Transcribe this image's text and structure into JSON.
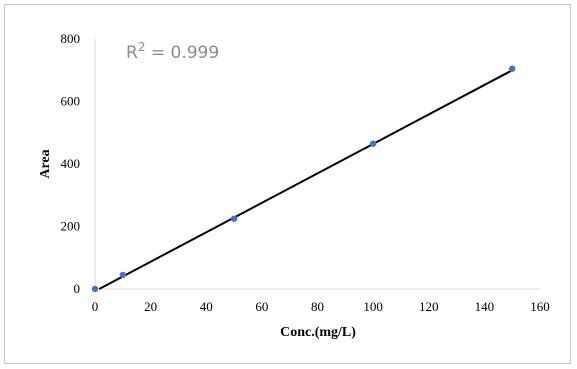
{
  "chart_data": {
    "type": "scatter",
    "xlabel": "Conc.(mg/L)",
    "ylabel": "Area",
    "xlim": [
      0,
      160
    ],
    "ylim": [
      0,
      800
    ],
    "xticks": [
      0,
      20,
      40,
      60,
      80,
      100,
      120,
      140,
      160
    ],
    "yticks": [
      0,
      200,
      400,
      600,
      800
    ],
    "grid": false,
    "annotation": {
      "prefix": "R",
      "superscript": "2",
      "suffix": " = 0.999"
    },
    "marker_color": "#4472c4",
    "line_color": "#000000",
    "series": [
      {
        "points": [
          {
            "x": 0,
            "y": 0
          },
          {
            "x": 10,
            "y": 45
          },
          {
            "x": 50,
            "y": 225
          },
          {
            "x": 100,
            "y": 465
          },
          {
            "x": 150,
            "y": 705
          }
        ]
      }
    ],
    "trendline": {
      "x_start": 1.5,
      "y_start": 0,
      "x_end": 150,
      "y_end": 700
    }
  }
}
